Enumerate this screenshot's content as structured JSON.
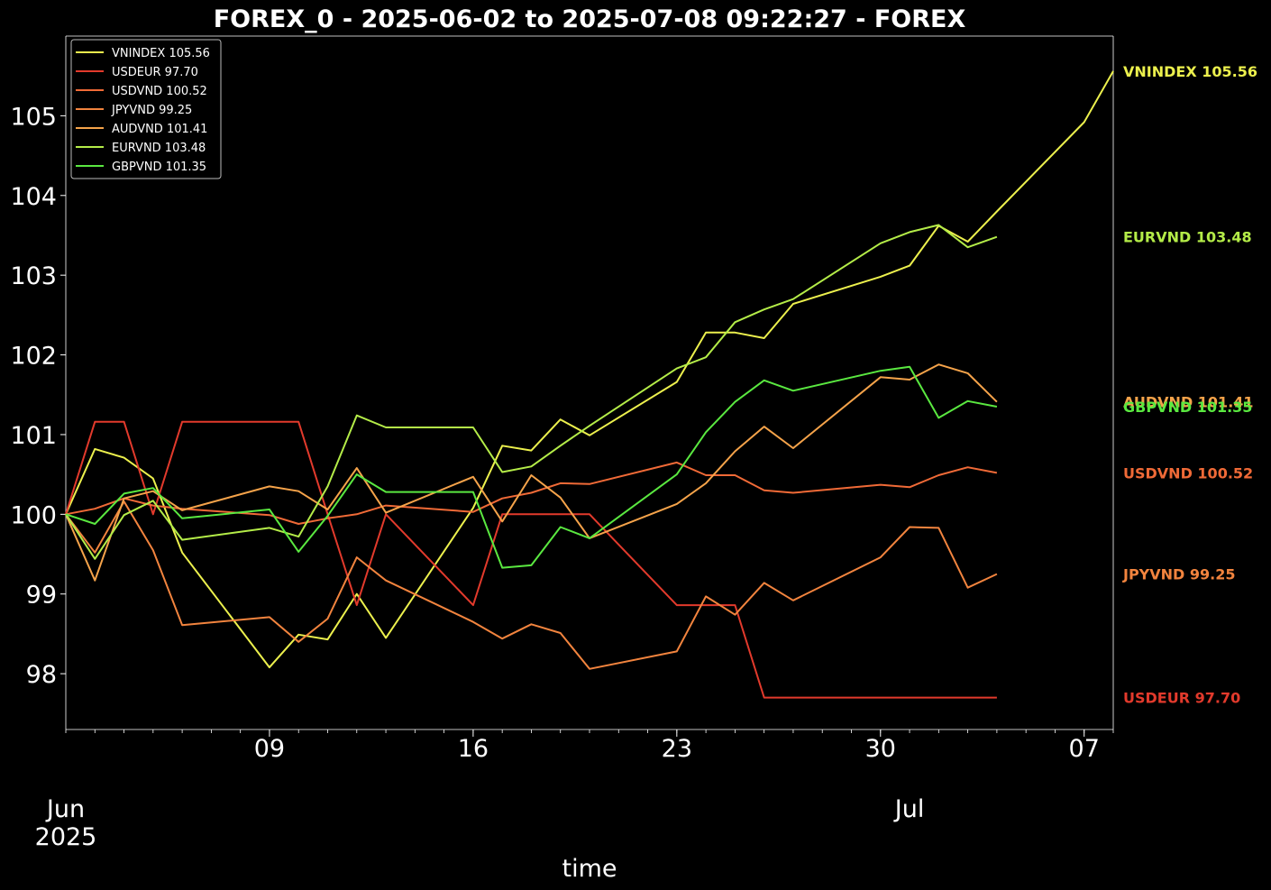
{
  "chart_data": {
    "type": "line",
    "title": "FOREX_0 - 2025-06-02 to 2025-07-08 09:22:27 - FOREX",
    "xlabel": "time",
    "ylabel": "",
    "ylim": [
      97.3,
      106.0
    ],
    "xlim": [
      "2025-06-02",
      "2025-07-08"
    ],
    "y_ticks": [
      "98",
      "99",
      "100",
      "101",
      "102",
      "103",
      "104",
      "105"
    ],
    "x_ticks": [
      {
        "date": "2025-06-09",
        "label": "09"
      },
      {
        "date": "2025-06-16",
        "label": "16"
      },
      {
        "date": "2025-06-23",
        "label": "23"
      },
      {
        "date": "2025-06-30",
        "label": "30"
      },
      {
        "date": "2025-07-07",
        "label": "07"
      }
    ],
    "x_month_labels": [
      {
        "date": "2025-06-02",
        "lines": [
          "Jun",
          "2025"
        ]
      },
      {
        "date": "2025-07-01",
        "lines": [
          "Jul"
        ]
      }
    ],
    "grid": false,
    "legend_position": "top-left",
    "x": [
      "2025-06-02",
      "2025-06-03",
      "2025-06-04",
      "2025-06-05",
      "2025-06-06",
      "2025-06-09",
      "2025-06-10",
      "2025-06-11",
      "2025-06-12",
      "2025-06-13",
      "2025-06-16",
      "2025-06-17",
      "2025-06-18",
      "2025-06-19",
      "2025-06-20",
      "2025-06-23",
      "2025-06-24",
      "2025-06-25",
      "2025-06-26",
      "2025-06-27",
      "2025-06-30",
      "2025-07-01",
      "2025-07-02",
      "2025-07-03",
      "2025-07-04",
      "2025-07-07",
      "2025-07-08"
    ],
    "series": [
      {
        "name": "VNINDEX",
        "last": "105.56",
        "color": "#ecf04d",
        "values": [
          100.0,
          100.82,
          100.71,
          100.45,
          99.52,
          98.08,
          98.49,
          98.43,
          99.0,
          98.45,
          100.08,
          100.86,
          100.8,
          101.19,
          100.99,
          101.66,
          102.28,
          102.28,
          102.21,
          102.64,
          102.98,
          103.12,
          103.62,
          103.42,
          103.8,
          104.92,
          105.56
        ]
      },
      {
        "name": "USDEUR",
        "last": "97.70",
        "color": "#e23a2c",
        "values": [
          100.0,
          101.16,
          101.16,
          100.0,
          101.16,
          101.16,
          101.16,
          100.0,
          98.86,
          100.0,
          98.86,
          100.0,
          100.0,
          100.0,
          100.0,
          98.86,
          98.86,
          98.86,
          97.7,
          97.7,
          97.7,
          97.7,
          97.7,
          97.7,
          97.7,
          null,
          null
        ]
      },
      {
        "name": "USDVND",
        "last": "100.52",
        "color": "#f06a37",
        "values": [
          100.0,
          100.07,
          100.2,
          100.11,
          100.07,
          99.99,
          99.88,
          99.95,
          100.0,
          100.11,
          100.03,
          100.2,
          100.27,
          100.39,
          100.38,
          100.65,
          100.49,
          100.49,
          100.3,
          100.27,
          100.37,
          100.34,
          100.49,
          100.59,
          100.52,
          null,
          null
        ]
      },
      {
        "name": "JPYVND",
        "last": "99.25",
        "color": "#f2843e",
        "values": [
          100.0,
          99.52,
          100.16,
          99.55,
          98.61,
          98.71,
          98.4,
          98.69,
          99.46,
          99.17,
          98.65,
          98.44,
          98.62,
          98.51,
          98.06,
          98.28,
          98.97,
          98.74,
          99.14,
          98.92,
          99.46,
          99.84,
          99.83,
          99.08,
          99.25,
          null,
          null
        ]
      },
      {
        "name": "AUDVND",
        "last": "101.41",
        "color": "#f5a34a",
        "values": [
          100.0,
          99.17,
          100.2,
          100.29,
          100.05,
          100.35,
          100.29,
          100.06,
          100.58,
          100.02,
          100.47,
          99.91,
          100.49,
          100.21,
          99.7,
          100.13,
          100.39,
          100.79,
          101.1,
          100.83,
          101.72,
          101.69,
          101.88,
          101.77,
          101.41,
          null,
          null
        ]
      },
      {
        "name": "EURVND",
        "last": "103.48",
        "color": "#b4ec48",
        "values": [
          100.0,
          99.44,
          99.99,
          100.17,
          99.68,
          99.83,
          99.72,
          100.35,
          101.24,
          101.09,
          101.09,
          100.53,
          100.6,
          100.86,
          101.11,
          101.83,
          101.97,
          102.41,
          102.57,
          102.7,
          103.4,
          103.54,
          103.63,
          103.35,
          103.48,
          null,
          null
        ]
      },
      {
        "name": "GBPVND",
        "last": "101.35",
        "color": "#5ae840",
        "values": [
          100.0,
          99.88,
          100.26,
          100.33,
          99.95,
          100.06,
          99.53,
          99.98,
          100.5,
          100.28,
          100.28,
          99.33,
          99.36,
          99.84,
          99.7,
          100.5,
          101.03,
          101.41,
          101.68,
          101.55,
          101.8,
          101.85,
          101.21,
          101.42,
          101.35,
          null,
          null
        ]
      }
    ]
  }
}
